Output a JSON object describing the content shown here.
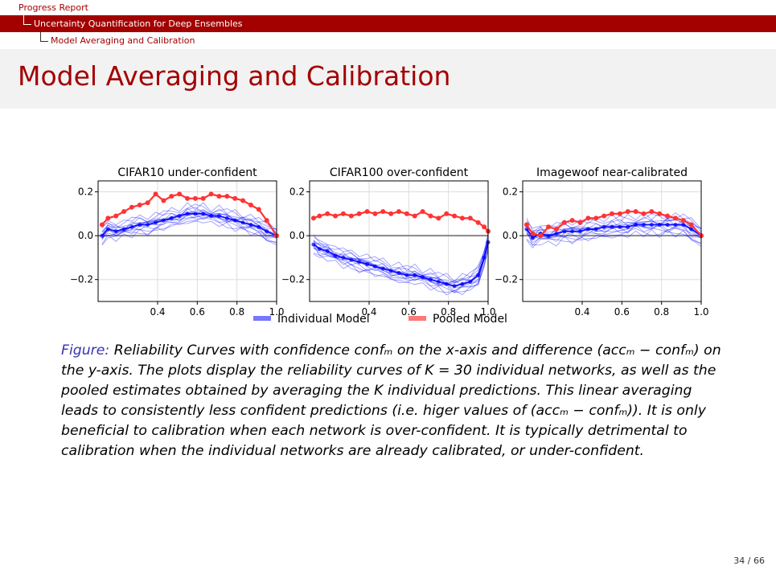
{
  "breadcrumbs": {
    "l1": "Progress Report",
    "l2": "Uncertainty Quantification for Deep Ensembles",
    "l3": "Model Averaging and Calibration"
  },
  "slide_title": "Model Averaging and Calibration",
  "caption": {
    "label": "Figure:",
    "text": "Reliability Curves with confidence confₘ on the x-axis and difference (accₘ − confₘ) on the y-axis. The plots display the reliability curves of K = 30 individual networks, as well as the pooled estimates obtained by averaging the K individual predictions. This linear averaging leads to consistently less confident predictions (i.e. higer values of (accₘ − confₘ)). It is only beneficial to calibration when each network is over-confident. It is typically detrimental to calibration when the individual networks are already calibrated, or under-confident."
  },
  "page": "34 / 66",
  "colors": {
    "accent": "#a30000",
    "individual": "#0000ff",
    "pooled": "#ff3333",
    "caption_label": "#3333b3"
  },
  "legend": [
    {
      "label": "Individual Model",
      "color": "#7777ff"
    },
    {
      "label": "Pooled Model",
      "color": "#ff7777"
    }
  ],
  "chart_data": [
    {
      "type": "line",
      "title": "CIFAR10 under-confident",
      "xlim": [
        0.1,
        1.0
      ],
      "ylim": [
        -0.3,
        0.25
      ],
      "xticks": [
        "0.4",
        "0.6",
        "0.8",
        "1.0"
      ],
      "xtick_values": [
        0.4,
        0.6,
        0.8,
        1.0
      ],
      "yticks": [
        "0.2",
        "0.0",
        "−0.2"
      ],
      "ytick_values": [
        0.2,
        0.0,
        -0.2
      ],
      "grid": true,
      "x": [
        0.12,
        0.15,
        0.19,
        0.23,
        0.27,
        0.31,
        0.35,
        0.39,
        0.43,
        0.47,
        0.51,
        0.55,
        0.59,
        0.63,
        0.67,
        0.71,
        0.75,
        0.79,
        0.83,
        0.87,
        0.91,
        0.95,
        1.0
      ],
      "series": [
        {
          "name": "Individual Model",
          "values": [
            0.0,
            0.03,
            0.02,
            0.03,
            0.04,
            0.05,
            0.05,
            0.06,
            0.07,
            0.08,
            0.09,
            0.1,
            0.1,
            0.1,
            0.09,
            0.09,
            0.08,
            0.07,
            0.06,
            0.05,
            0.04,
            0.02,
            0.0
          ],
          "spread": 0.035
        },
        {
          "name": "Pooled Model",
          "values": [
            0.05,
            0.08,
            0.09,
            0.11,
            0.13,
            0.14,
            0.15,
            0.19,
            0.16,
            0.18,
            0.19,
            0.17,
            0.17,
            0.17,
            0.19,
            0.18,
            0.18,
            0.17,
            0.16,
            0.14,
            0.12,
            0.07,
            0.0
          ]
        }
      ]
    },
    {
      "type": "line",
      "title": "CIFAR100 over-confident",
      "xlim": [
        0.1,
        1.0
      ],
      "ylim": [
        -0.3,
        0.25
      ],
      "xticks": [
        "0.4",
        "0.6",
        "0.8",
        "1.0"
      ],
      "xtick_values": [
        0.4,
        0.6,
        0.8,
        1.0
      ],
      "yticks": [
        "0.2",
        "0.0",
        "−0.2"
      ],
      "ytick_values": [
        0.2,
        0.0,
        -0.2
      ],
      "grid": true,
      "x": [
        0.12,
        0.15,
        0.19,
        0.23,
        0.27,
        0.31,
        0.35,
        0.39,
        0.43,
        0.47,
        0.51,
        0.55,
        0.59,
        0.63,
        0.67,
        0.71,
        0.75,
        0.79,
        0.83,
        0.87,
        0.91,
        0.95,
        0.98,
        1.0
      ],
      "series": [
        {
          "name": "Individual Model",
          "values": [
            -0.04,
            -0.06,
            -0.07,
            -0.09,
            -0.1,
            -0.11,
            -0.12,
            -0.13,
            -0.14,
            -0.15,
            -0.16,
            -0.17,
            -0.18,
            -0.18,
            -0.19,
            -0.2,
            -0.21,
            -0.22,
            -0.23,
            -0.22,
            -0.21,
            -0.18,
            -0.1,
            -0.03
          ],
          "spread": 0.035
        },
        {
          "name": "Pooled Model",
          "values": [
            0.08,
            0.09,
            0.1,
            0.09,
            0.1,
            0.09,
            0.1,
            0.11,
            0.1,
            0.11,
            0.1,
            0.11,
            0.1,
            0.09,
            0.11,
            0.09,
            0.08,
            0.1,
            0.09,
            0.08,
            0.08,
            0.06,
            0.04,
            0.02
          ]
        }
      ]
    },
    {
      "type": "line",
      "title": "Imagewoof near-calibrated",
      "xlim": [
        0.1,
        1.0
      ],
      "ylim": [
        -0.3,
        0.25
      ],
      "xticks": [
        "0.4",
        "0.6",
        "0.8",
        "1.0"
      ],
      "xtick_values": [
        0.4,
        0.6,
        0.8,
        1.0
      ],
      "yticks": [
        "0.2",
        "0.0",
        "−0.2"
      ],
      "ytick_values": [
        0.2,
        0.0,
        -0.2
      ],
      "grid": true,
      "x": [
        0.12,
        0.15,
        0.19,
        0.23,
        0.27,
        0.31,
        0.35,
        0.39,
        0.43,
        0.47,
        0.51,
        0.55,
        0.59,
        0.63,
        0.67,
        0.71,
        0.75,
        0.79,
        0.83,
        0.87,
        0.91,
        0.95,
        1.0
      ],
      "series": [
        {
          "name": "Individual Model",
          "values": [
            0.03,
            -0.01,
            0.01,
            0.0,
            0.01,
            0.02,
            0.02,
            0.02,
            0.03,
            0.03,
            0.04,
            0.04,
            0.04,
            0.04,
            0.05,
            0.05,
            0.05,
            0.05,
            0.05,
            0.05,
            0.05,
            0.03,
            0.0
          ],
          "spread": 0.04
        },
        {
          "name": "Pooled Model",
          "values": [
            0.05,
            0.01,
            0.0,
            0.04,
            0.03,
            0.06,
            0.07,
            0.06,
            0.08,
            0.08,
            0.09,
            0.1,
            0.1,
            0.11,
            0.11,
            0.1,
            0.11,
            0.1,
            0.09,
            0.08,
            0.07,
            0.05,
            0.0
          ]
        }
      ]
    }
  ]
}
